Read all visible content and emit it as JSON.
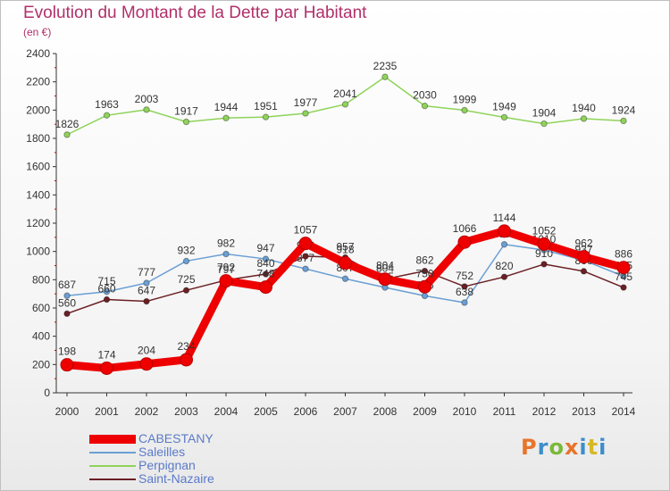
{
  "header": {
    "title": "Evolution du Montant de la Dette par Habitant",
    "subtitle": "(en €)"
  },
  "logo": {
    "text": "Proxiti",
    "colors": [
      "#e8742a",
      "#3d8ec9",
      "#7bb93a",
      "#e8742a",
      "#3d8ec9",
      "#d6b826",
      "#3d8ec9"
    ]
  },
  "legend": [
    {
      "label": "CABESTANY",
      "color": "#ee0000"
    },
    {
      "label": "Saleilles",
      "color": "#6a9fd4"
    },
    {
      "label": "Perpignan",
      "color": "#8fd35a"
    },
    {
      "label": "Saint-Nazaire",
      "color": "#6b1f24"
    }
  ],
  "chart_data": {
    "type": "line",
    "x": [
      "2000",
      "2001",
      "2002",
      "2003",
      "2004",
      "2005",
      "2006",
      "2007",
      "2008",
      "2009",
      "2010",
      "2011",
      "2012",
      "2013",
      "2014"
    ],
    "ylim": [
      0,
      2400
    ],
    "yticks": [
      0,
      200,
      400,
      600,
      800,
      1000,
      1200,
      1400,
      1600,
      1800,
      2000,
      2200,
      2400
    ],
    "grid": false,
    "legend_position": "bottom-left",
    "series": [
      {
        "name": "Perpignan",
        "color": "#8fd35a",
        "values": [
          1826,
          1963,
          2003,
          1917,
          1944,
          1951,
          1977,
          2041,
          2235,
          2030,
          1999,
          1949,
          1904,
          1940,
          1924
        ]
      },
      {
        "name": "Saleilles",
        "color": "#6a9fd4",
        "values": [
          687,
          715,
          777,
          932,
          982,
          947,
          877,
          807,
          745,
          686,
          638,
          1050,
          1010,
          937,
          825
        ]
      },
      {
        "name": "Saint-Nazaire",
        "color": "#6b1f24",
        "values": [
          560,
          660,
          647,
          725,
          797,
          840,
          966,
          957,
          804,
          862,
          752,
          820,
          910,
          860,
          745
        ]
      },
      {
        "name": "CABESTANY",
        "color": "#ee0000",
        "values": [
          198,
          174,
          204,
          234,
          792,
          748,
          1057,
          918,
          804,
          750,
          1066,
          1144,
          1052,
          962,
          886
        ]
      }
    ]
  }
}
